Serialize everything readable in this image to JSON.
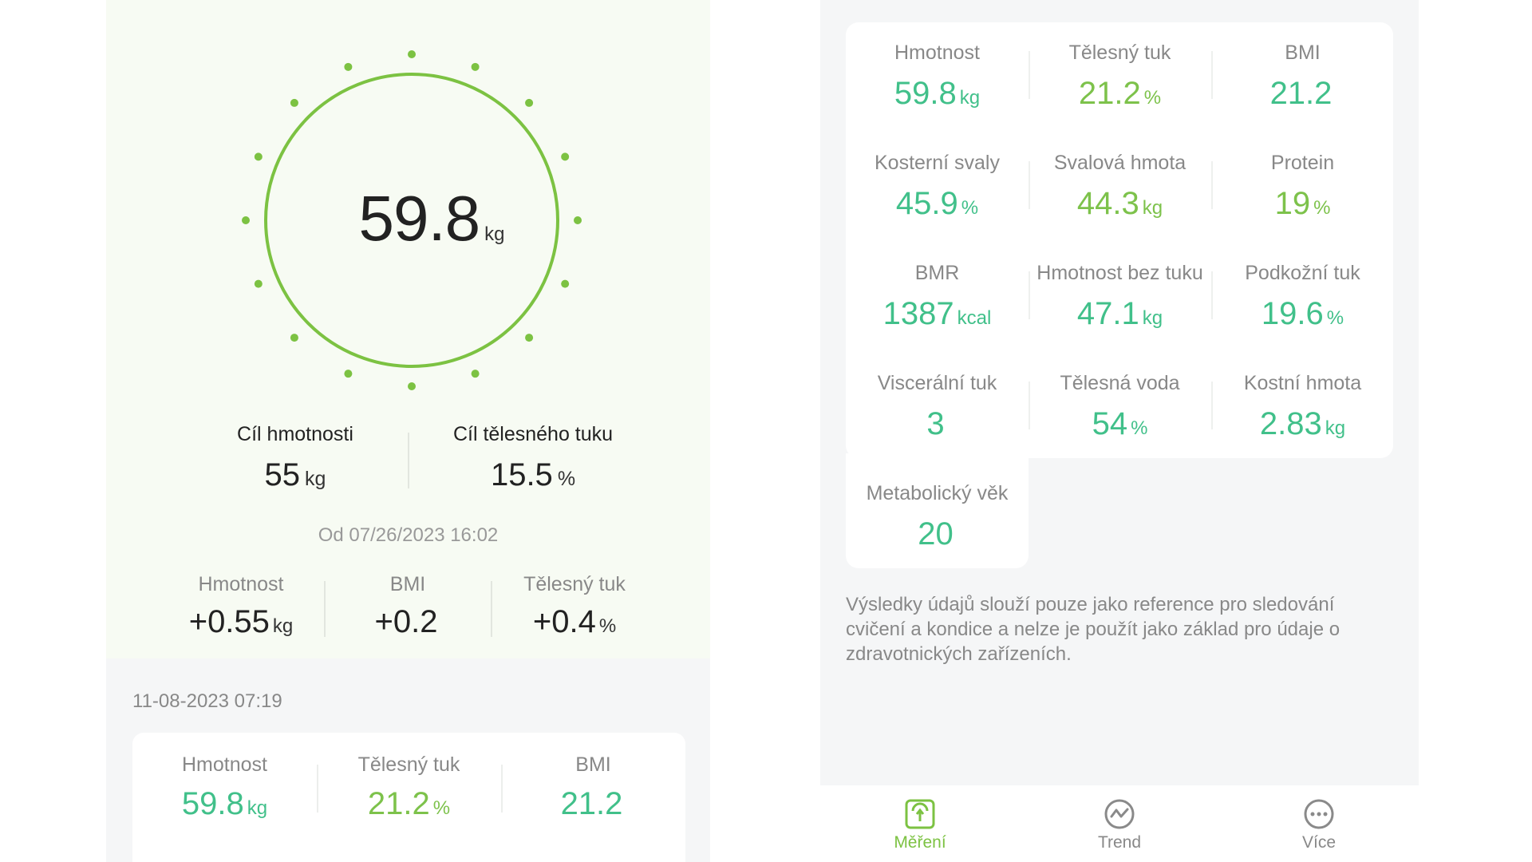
{
  "colors": {
    "accent_green": "#7cc242",
    "value_teal": "#41c08a",
    "value_lime": "#7dc24b"
  },
  "gauge": {
    "value": "59.8",
    "unit": "kg"
  },
  "goals": [
    {
      "label": "Cíl hmotnosti",
      "value": "55",
      "unit": "kg"
    },
    {
      "label": "Cíl tělesného tuku",
      "value": "15.5",
      "unit": "%"
    }
  ],
  "since_label": "Od 07/26/2023 16:02",
  "changes": [
    {
      "label": "Hmotnost",
      "value": "+0.55",
      "unit": "kg"
    },
    {
      "label": "BMI",
      "value": "+0.2",
      "unit": ""
    },
    {
      "label": "Tělesný tuk",
      "value": "+0.4",
      "unit": "%"
    }
  ],
  "history": {
    "date": "11-08-2023 07:19",
    "items": [
      {
        "label": "Hmotnost",
        "value": "59.8",
        "unit": "kg",
        "color": "#41c08a"
      },
      {
        "label": "Tělesný tuk",
        "value": "21.2",
        "unit": "%",
        "color": "#7dc24b"
      },
      {
        "label": "BMI",
        "value": "21.2",
        "unit": "",
        "color": "#41c08a"
      }
    ]
  },
  "metrics": [
    {
      "label": "Hmotnost",
      "value": "59.8",
      "unit": "kg",
      "color": "#41c08a"
    },
    {
      "label": "Tělesný tuk",
      "value": "21.2",
      "unit": "%",
      "color": "#7dc24b"
    },
    {
      "label": "BMI",
      "value": "21.2",
      "unit": "",
      "color": "#41c08a"
    },
    {
      "label": "Kosterní svaly",
      "value": "45.9",
      "unit": "%",
      "color": "#41c08a"
    },
    {
      "label": "Svalová hmota",
      "value": "44.3",
      "unit": "kg",
      "color": "#7dc24b"
    },
    {
      "label": "Protein",
      "value": "19",
      "unit": "%",
      "color": "#7dc24b"
    },
    {
      "label": "BMR",
      "value": "1387",
      "unit": "kcal",
      "color": "#41c08a"
    },
    {
      "label": "Hmotnost bez tuku",
      "value": "47.1",
      "unit": "kg",
      "color": "#41c08a"
    },
    {
      "label": "Podkožní tuk",
      "value": "19.6",
      "unit": "%",
      "color": "#41c08a"
    },
    {
      "label": "Viscerální tuk",
      "value": "3",
      "unit": "",
      "color": "#41c08a"
    },
    {
      "label": "Tělesná voda",
      "value": "54",
      "unit": "%",
      "color": "#41c08a"
    },
    {
      "label": "Kostní hmota",
      "value": "2.83",
      "unit": "kg",
      "color": "#41c08a"
    },
    {
      "label": "Metabolický věk",
      "value": "20",
      "unit": "",
      "color": "#41c08a"
    }
  ],
  "disclaimer": "Výsledky údajů slouží pouze jako reference pro sledování cvičení a kondice a nelze je použít jako základ pro údaje o zdravotnických zařízeních.",
  "tabs": [
    {
      "label": "Měření",
      "icon": "scale-icon",
      "active": true
    },
    {
      "label": "Trend",
      "icon": "trend-icon",
      "active": false
    },
    {
      "label": "Více",
      "icon": "more-icon",
      "active": false
    }
  ]
}
